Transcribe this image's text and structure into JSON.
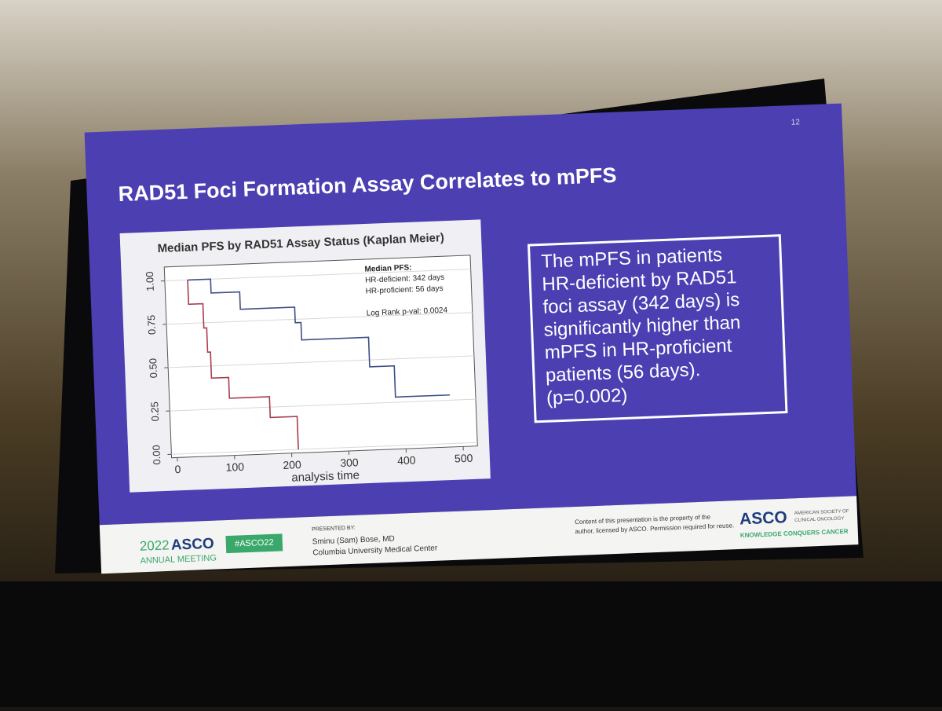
{
  "slide": {
    "page_number": "12",
    "title": "RAD51 Foci Formation Assay Correlates to mPFS",
    "callout": [
      "The mPFS in patients",
      "HR-deficient by RAD51",
      "foci assay (342 days) is",
      "significantly higher than",
      "mPFS in HR-proficient",
      "patients (56 days).",
      "(p=0.002)"
    ],
    "footer": {
      "year": "2022",
      "meeting_logo": "ASCO",
      "meeting_sub": "ANNUAL MEETING",
      "hashtag": "#ASCO22",
      "presented_by": "PRESENTED BY:",
      "presenter": "Sminu (Sam) Bose, MD",
      "institution": "Columbia University Medical Center",
      "notice": [
        "Content of this presentation is the property of the",
        "author, licensed by ASCO. Permission required for reuse."
      ],
      "asco_logo": "ASCO",
      "asco_name": [
        "AMERICAN SOCIETY OF",
        "CLINICAL ONCOLOGY"
      ],
      "tagline": "KNOWLEDGE CONQUERS CANCER"
    }
  },
  "chart_data": {
    "type": "step",
    "title": "Median PFS by RAD51 Assay Status (Kaplan Meier)",
    "x_label": "analysis time",
    "annotations": [
      "Median PFS:",
      "HR-deficient: 342 days",
      "HR-proficient: 56 days",
      "Log Rank p-val: 0.0024"
    ],
    "xlim": [
      -10,
      525
    ],
    "ylim": [
      -0.02,
      1.08
    ],
    "xticks": [
      0,
      100,
      200,
      300,
      400,
      500
    ],
    "yticks": [
      {
        "value": 0,
        "label": "0.00"
      },
      {
        "value": 0.25,
        "label": "0.25"
      },
      {
        "value": 0.5,
        "label": "0.50"
      },
      {
        "value": 0.75,
        "label": "0.75"
      },
      {
        "value": 1,
        "label": "1.00"
      }
    ],
    "grid": true,
    "series": [
      {
        "color": "#3d4f86",
        "x": [
          30,
          70,
          120,
          215,
          225,
          342,
          385,
          480
        ],
        "values": [
          1,
          0.92,
          0.82,
          0.73,
          0.63,
          0.46,
          0.28,
          0.28
        ]
      },
      {
        "color": "#a83c4c",
        "x": [
          30,
          30,
          55,
          60,
          65,
          95,
          165,
          212
        ],
        "values": [
          1,
          0.86,
          0.72,
          0.58,
          0.43,
          0.31,
          0.19,
          0
        ]
      }
    ]
  }
}
